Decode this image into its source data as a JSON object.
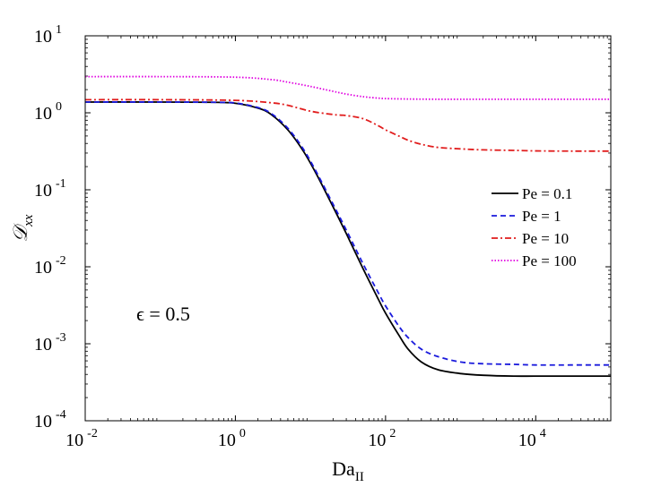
{
  "chart_data": {
    "type": "line",
    "title": "",
    "xlabel": "Da",
    "xlabel_subscript": "II",
    "ylabel": "𝒟",
    "ylabel_subscript": "xx",
    "xscale": "log",
    "yscale": "log",
    "xlim": [
      0.01,
      100000
    ],
    "ylim": [
      0.0001,
      10
    ],
    "x_ticks": [
      {
        "base": "10",
        "exp": "-2",
        "value": 0.01
      },
      {
        "base": "10",
        "exp": "0",
        "value": 1
      },
      {
        "base": "10",
        "exp": "2",
        "value": 100
      },
      {
        "base": "10",
        "exp": "4",
        "value": 10000
      }
    ],
    "y_ticks": [
      {
        "base": "10",
        "exp": "-4",
        "value": 0.0001
      },
      {
        "base": "10",
        "exp": "-3",
        "value": 0.001
      },
      {
        "base": "10",
        "exp": "-2",
        "value": 0.01
      },
      {
        "base": "10",
        "exp": "-1",
        "value": 0.1
      },
      {
        "base": "10",
        "exp": "0",
        "value": 1
      },
      {
        "base": "10",
        "exp": "1",
        "value": 10
      }
    ],
    "annotation": "ϵ = 0.5",
    "legend_position": "right",
    "series": [
      {
        "name": "Pe = 0.1",
        "color": "#000000",
        "dash": "solid",
        "x": [
          0.01,
          0.1,
          0.5,
          1,
          2,
          3,
          5,
          8,
          12,
          20,
          30,
          50,
          80,
          100,
          150,
          200,
          300,
          500,
          1000,
          2000,
          5000,
          10000,
          30000,
          100000
        ],
        "y": [
          1.38,
          1.38,
          1.37,
          1.33,
          1.15,
          0.95,
          0.6,
          0.32,
          0.16,
          0.06,
          0.027,
          0.0095,
          0.0038,
          0.0025,
          0.0013,
          0.00085,
          0.00058,
          0.00046,
          0.00041,
          0.00039,
          0.00038,
          0.00038,
          0.00038,
          0.00038
        ]
      },
      {
        "name": "Pe = 1",
        "color": "#1a1adc",
        "dash": "dashed",
        "x": [
          0.01,
          0.1,
          0.5,
          1,
          2,
          3,
          5,
          8,
          12,
          20,
          30,
          50,
          80,
          100,
          150,
          200,
          300,
          500,
          1000,
          2000,
          5000,
          10000,
          30000,
          100000
        ],
        "y": [
          1.38,
          1.38,
          1.37,
          1.34,
          1.17,
          0.98,
          0.63,
          0.34,
          0.17,
          0.065,
          0.03,
          0.011,
          0.0046,
          0.0031,
          0.0017,
          0.0012,
          0.00085,
          0.00068,
          0.00058,
          0.00055,
          0.00054,
          0.00053,
          0.00053,
          0.00053
        ]
      },
      {
        "name": "Pe = 10",
        "color": "#e11d1d",
        "dash": "dashdot",
        "x": [
          0.01,
          0.1,
          1,
          3,
          5,
          10,
          20,
          30,
          50,
          80,
          100,
          150,
          200,
          300,
          500,
          1000,
          2000,
          5000,
          10000,
          30000,
          100000
        ],
        "y": [
          1.48,
          1.48,
          1.45,
          1.35,
          1.25,
          1.05,
          0.95,
          0.92,
          0.84,
          0.68,
          0.6,
          0.5,
          0.44,
          0.39,
          0.355,
          0.34,
          0.33,
          0.325,
          0.32,
          0.318,
          0.318
        ]
      },
      {
        "name": "Pe = 100",
        "color": "#e000e0",
        "dash": "dotted",
        "x": [
          0.01,
          0.1,
          1,
          3,
          5,
          10,
          20,
          30,
          50,
          80,
          100,
          200,
          500,
          1000,
          10000,
          100000
        ],
        "y": [
          2.95,
          2.95,
          2.9,
          2.7,
          2.5,
          2.2,
          1.9,
          1.75,
          1.62,
          1.55,
          1.53,
          1.51,
          1.5,
          1.5,
          1.5,
          1.5
        ]
      }
    ]
  }
}
